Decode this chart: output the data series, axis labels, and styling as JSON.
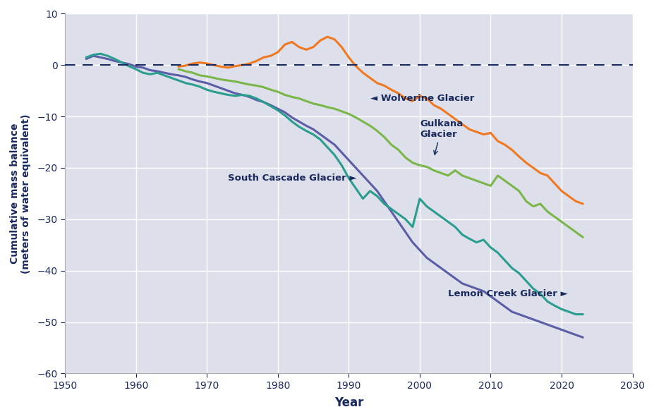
{
  "xlabel": "Year",
  "ylabel": "Cumulative mass balance\n(meters of water equivalent)",
  "xlim": [
    1950,
    2030
  ],
  "ylim": [
    -60,
    10
  ],
  "yticks": [
    10,
    0,
    -10,
    -20,
    -30,
    -40,
    -50,
    -60
  ],
  "xticks": [
    1950,
    1960,
    1970,
    1980,
    1990,
    2000,
    2010,
    2020,
    2030
  ],
  "plot_bg": "#dde0ea",
  "fig_bg": "#ffffff",
  "grid_color": "#ffffff",
  "dashed_zero_color": "#1a2a5e",
  "label_color": "#1a2a5e",
  "wolverine": {
    "color": "#f07820",
    "years": [
      1966,
      1967,
      1968,
      1969,
      1970,
      1971,
      1972,
      1973,
      1974,
      1975,
      1976,
      1977,
      1978,
      1979,
      1980,
      1981,
      1982,
      1983,
      1984,
      1985,
      1986,
      1987,
      1988,
      1989,
      1990,
      1991,
      1992,
      1993,
      1994,
      1995,
      1996,
      1997,
      1998,
      1999,
      2000,
      2001,
      2002,
      2003,
      2004,
      2005,
      2006,
      2007,
      2008,
      2009,
      2010,
      2011,
      2012,
      2013,
      2014,
      2015,
      2016,
      2017,
      2018,
      2019,
      2020,
      2021,
      2022,
      2023
    ],
    "values": [
      -0.3,
      -0.1,
      0.3,
      0.5,
      0.3,
      0.0,
      -0.3,
      -0.5,
      -0.2,
      0.0,
      0.3,
      0.8,
      1.5,
      1.8,
      2.5,
      4.0,
      4.5,
      3.5,
      3.0,
      3.5,
      4.8,
      5.5,
      5.0,
      3.5,
      1.5,
      -0.2,
      -1.5,
      -2.5,
      -3.5,
      -4.0,
      -4.8,
      -5.5,
      -6.5,
      -7.0,
      -6.0,
      -6.5,
      -7.8,
      -8.5,
      -9.5,
      -10.5,
      -11.5,
      -12.5,
      -13.0,
      -13.5,
      -13.2,
      -14.8,
      -15.5,
      -16.5,
      -17.8,
      -19.0,
      -20.0,
      -21.0,
      -21.5,
      -23.0,
      -24.5,
      -25.5,
      -26.5,
      -27.0
    ]
  },
  "gulkana": {
    "color": "#7ab648",
    "years": [
      1966,
      1967,
      1968,
      1969,
      1970,
      1971,
      1972,
      1973,
      1974,
      1975,
      1976,
      1977,
      1978,
      1979,
      1980,
      1981,
      1982,
      1983,
      1984,
      1985,
      1986,
      1987,
      1988,
      1989,
      1990,
      1991,
      1992,
      1993,
      1994,
      1995,
      1996,
      1997,
      1998,
      1999,
      2000,
      2001,
      2002,
      2003,
      2004,
      2005,
      2006,
      2007,
      2008,
      2009,
      2010,
      2011,
      2012,
      2013,
      2014,
      2015,
      2016,
      2017,
      2018,
      2019,
      2020,
      2021,
      2022,
      2023
    ],
    "values": [
      -0.8,
      -1.2,
      -1.5,
      -2.0,
      -2.2,
      -2.5,
      -2.8,
      -3.0,
      -3.2,
      -3.5,
      -3.8,
      -4.0,
      -4.3,
      -4.8,
      -5.2,
      -5.8,
      -6.2,
      -6.5,
      -7.0,
      -7.5,
      -7.8,
      -8.2,
      -8.5,
      -9.0,
      -9.5,
      -10.2,
      -11.0,
      -11.8,
      -12.8,
      -14.0,
      -15.5,
      -16.5,
      -18.0,
      -19.0,
      -19.5,
      -19.8,
      -20.5,
      -21.0,
      -21.5,
      -20.5,
      -21.5,
      -22.0,
      -22.5,
      -23.0,
      -23.5,
      -21.5,
      -22.5,
      -23.5,
      -24.5,
      -26.5,
      -27.5,
      -27.0,
      -28.5,
      -29.5,
      -30.5,
      -31.5,
      -32.5,
      -33.5
    ]
  },
  "south_cascade": {
    "color": "#5b5ea6",
    "years": [
      1953,
      1954,
      1955,
      1956,
      1957,
      1958,
      1959,
      1960,
      1961,
      1962,
      1963,
      1964,
      1965,
      1966,
      1967,
      1968,
      1969,
      1970,
      1971,
      1972,
      1973,
      1974,
      1975,
      1976,
      1977,
      1978,
      1979,
      1980,
      1981,
      1982,
      1983,
      1984,
      1985,
      1986,
      1987,
      1988,
      1989,
      1990,
      1991,
      1992,
      1993,
      1994,
      1995,
      1996,
      1997,
      1998,
      1999,
      2000,
      2001,
      2002,
      2003,
      2004,
      2005,
      2006,
      2007,
      2008,
      2009,
      2010,
      2011,
      2012,
      2013,
      2014,
      2015,
      2016,
      2017,
      2018,
      2019,
      2020,
      2021,
      2022,
      2023
    ],
    "values": [
      1.2,
      1.8,
      1.5,
      1.2,
      0.8,
      0.5,
      0.2,
      -0.3,
      -0.5,
      -1.0,
      -1.2,
      -1.5,
      -1.8,
      -2.0,
      -2.3,
      -2.8,
      -3.2,
      -3.5,
      -4.0,
      -4.5,
      -5.0,
      -5.5,
      -5.8,
      -6.2,
      -6.8,
      -7.2,
      -7.8,
      -8.5,
      -9.2,
      -10.2,
      -11.0,
      -11.8,
      -12.5,
      -13.5,
      -14.5,
      -15.5,
      -17.0,
      -18.5,
      -20.0,
      -21.5,
      -23.0,
      -24.5,
      -26.5,
      -28.5,
      -30.5,
      -32.5,
      -34.5,
      -36.0,
      -37.5,
      -38.5,
      -39.5,
      -40.5,
      -41.5,
      -42.5,
      -43.0,
      -43.5,
      -44.0,
      -45.0,
      -46.0,
      -47.0,
      -48.0,
      -48.5,
      -49.0,
      -49.5,
      -50.0,
      -50.5,
      -51.0,
      -51.5,
      -52.0,
      -52.5,
      -53.0
    ]
  },
  "lemon_creek": {
    "color": "#2a9d8f",
    "years": [
      1953,
      1954,
      1955,
      1956,
      1957,
      1958,
      1959,
      1960,
      1961,
      1962,
      1963,
      1964,
      1965,
      1966,
      1967,
      1968,
      1969,
      1970,
      1971,
      1972,
      1973,
      1974,
      1975,
      1976,
      1977,
      1978,
      1979,
      1980,
      1981,
      1982,
      1983,
      1984,
      1985,
      1986,
      1987,
      1988,
      1989,
      1990,
      1991,
      1992,
      1993,
      1994,
      1995,
      1996,
      1997,
      1998,
      1999,
      2000,
      2001,
      2002,
      2003,
      2004,
      2005,
      2006,
      2007,
      2008,
      2009,
      2010,
      2011,
      2012,
      2013,
      2014,
      2015,
      2016,
      2017,
      2018,
      2019,
      2020,
      2021,
      2022,
      2023
    ],
    "values": [
      1.5,
      2.0,
      2.2,
      1.8,
      1.2,
      0.5,
      -0.2,
      -0.8,
      -1.5,
      -1.8,
      -1.5,
      -2.0,
      -2.5,
      -3.0,
      -3.5,
      -3.8,
      -4.2,
      -4.8,
      -5.2,
      -5.5,
      -5.8,
      -6.0,
      -5.8,
      -6.0,
      -6.5,
      -7.2,
      -8.0,
      -8.8,
      -9.8,
      -11.0,
      -12.0,
      -12.8,
      -13.5,
      -14.5,
      -16.0,
      -17.5,
      -19.5,
      -22.0,
      -24.0,
      -26.0,
      -24.5,
      -25.5,
      -27.0,
      -28.0,
      -29.0,
      -30.0,
      -31.5,
      -26.0,
      -27.5,
      -28.5,
      -29.5,
      -30.5,
      -31.5,
      -33.0,
      -33.8,
      -34.5,
      -34.0,
      -35.5,
      -36.5,
      -38.0,
      -39.5,
      -40.5,
      -42.0,
      -43.5,
      -44.5,
      -46.0,
      -46.8,
      -47.5,
      -48.0,
      -48.5,
      -48.5
    ]
  },
  "annotation_color": "#1a2a5e",
  "ylabel_fontsize": 10,
  "xlabel_fontsize": 12,
  "tick_fontsize": 10,
  "ann_fontsize": 9.5
}
